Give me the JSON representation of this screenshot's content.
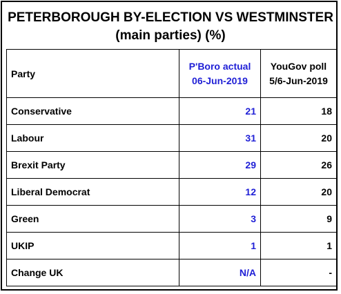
{
  "title": {
    "line1": "PETERBOROUGH BY-ELECTION VS WESTMINSTER",
    "line2": "(main parties) (%)"
  },
  "header": {
    "party": "Party",
    "actual_line1": "P'Boro actual",
    "actual_line2": "06-Jun-2019",
    "poll_line1": "YouGov poll",
    "poll_line2": "5/6-Jun-2019"
  },
  "rows": [
    {
      "party": "Conservative",
      "actual": "21",
      "poll": "18"
    },
    {
      "party": "Labour",
      "actual": "31",
      "poll": "20"
    },
    {
      "party": "Brexit Party",
      "actual": "29",
      "poll": "26"
    },
    {
      "party": "Liberal Democrat",
      "actual": "12",
      "poll": "20"
    },
    {
      "party": "Green",
      "actual": "3",
      "poll": "9"
    },
    {
      "party": "UKIP",
      "actual": "1",
      "poll": "1"
    },
    {
      "party": "Change UK",
      "actual": "N/A",
      "poll": "-"
    }
  ],
  "colors": {
    "actual_text": "#1f1fd6",
    "text": "#000000",
    "border": "#000000"
  }
}
